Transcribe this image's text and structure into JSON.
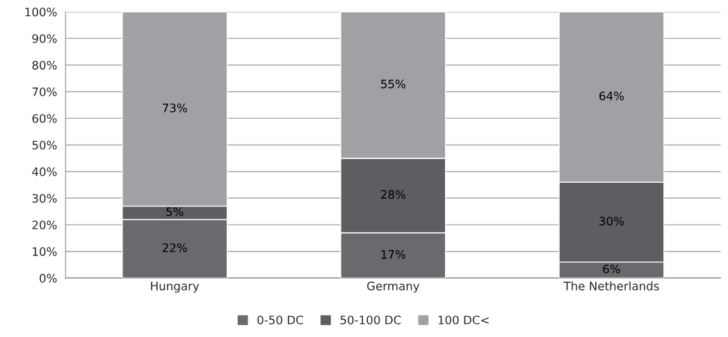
{
  "chart_data": {
    "type": "bar",
    "stacked": true,
    "categories": [
      "Hungary",
      "Germany",
      "The Netherlands"
    ],
    "series": [
      {
        "name": "0-50 DC",
        "color": "#696a6e",
        "values": [
          22,
          17,
          6
        ]
      },
      {
        "name": "50-100 DC",
        "color": "#5d5e62",
        "values": [
          5,
          28,
          30
        ]
      },
      {
        "name": "100 DC<",
        "color": "#9fa1a4",
        "values": [
          73,
          55,
          64
        ]
      }
    ],
    "ylim": [
      0,
      100
    ],
    "yticks": [
      {
        "value": 0,
        "label": "0%"
      },
      {
        "value": 10,
        "label": "10%"
      },
      {
        "value": 20,
        "label": "20%"
      },
      {
        "value": 30,
        "label": "30%"
      },
      {
        "value": 40,
        "label": "40%"
      },
      {
        "value": 50,
        "label": "50%"
      },
      {
        "value": 60,
        "label": "60%"
      },
      {
        "value": 70,
        "label": "70%"
      },
      {
        "value": 80,
        "label": "80%"
      },
      {
        "value": 90,
        "label": "90%"
      },
      {
        "value": 100,
        "label": "100%"
      }
    ],
    "value_labels": [
      [
        "22%",
        "17%",
        "6%"
      ],
      [
        "5%",
        "28%",
        "30%"
      ],
      [
        "73%",
        "55%",
        "64%"
      ]
    ],
    "grid": "y",
    "legend": "bottom"
  }
}
